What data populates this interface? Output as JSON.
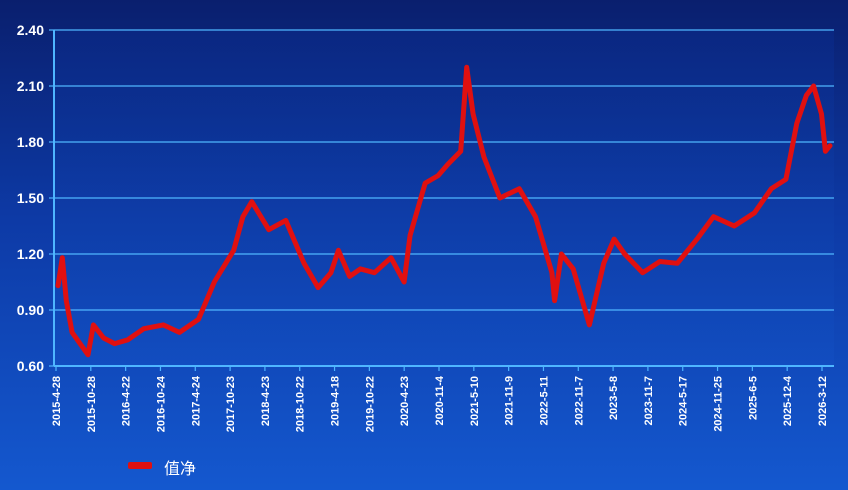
{
  "chart_data": {
    "type": "line",
    "title": "",
    "xlabel": "",
    "ylabel": "",
    "ylim": [
      0.6,
      2.4
    ],
    "y_ticks": [
      "0.60",
      "0.90",
      "1.20",
      "1.50",
      "1.80",
      "2.10",
      "2.40"
    ],
    "grid": "horizontal",
    "legend_position": "bottom-left",
    "x_tick_labels": [
      "2015-4-28",
      "2015-10-28",
      "2016-4-22",
      "2016-10-24",
      "2017-4-24",
      "2017-10-23",
      "2018-4-23",
      "2018-10-22",
      "2019-4-18",
      "2019-10-22",
      "2020-4-23",
      "2020-11-4",
      "2021-5-10",
      "2021-11-9",
      "2022-5-11",
      "2022-11-7",
      "2023-5-8",
      "2023-11-7",
      "2024-5-17",
      "2024-11-25",
      "2025-6-5",
      "2025-12-4",
      "2026-3-12"
    ],
    "series": [
      {
        "name": "值净",
        "color": "#e01010",
        "x": [
          "2015-04-28",
          "2015-05-20",
          "2015-06-10",
          "2015-07-10",
          "2015-08-20",
          "2015-09-30",
          "2015-10-28",
          "2015-12-20",
          "2016-02-15",
          "2016-04-22",
          "2016-07-15",
          "2016-10-24",
          "2017-01-15",
          "2017-04-24",
          "2017-07-15",
          "2017-10-23",
          "2017-12-10",
          "2018-01-25",
          "2018-04-23",
          "2018-07-20",
          "2018-10-22",
          "2019-01-03",
          "2019-03-10",
          "2019-04-18",
          "2019-06-15",
          "2019-08-10",
          "2019-10-22",
          "2020-01-15",
          "2020-03-23",
          "2020-04-23",
          "2020-07-10",
          "2020-09-15",
          "2020-11-04",
          "2021-01-10",
          "2021-02-10",
          "2021-03-15",
          "2021-05-10",
          "2021-08-01",
          "2021-11-09",
          "2022-02-01",
          "2022-04-27",
          "2022-05-11",
          "2022-06-15",
          "2022-08-15",
          "2022-11-07",
          "2023-01-20",
          "2023-03-15",
          "2023-05-08",
          "2023-08-10",
          "2023-11-07",
          "2024-02-05",
          "2024-05-17",
          "2024-08-10",
          "2024-11-25",
          "2025-03-10",
          "2025-06-05",
          "2025-08-20",
          "2025-10-15",
          "2025-12-04",
          "2026-01-10",
          "2026-02-20",
          "2026-03-12",
          "2026-04-05"
        ],
        "values": [
          1.03,
          1.18,
          0.95,
          0.78,
          0.72,
          0.66,
          0.82,
          0.75,
          0.72,
          0.74,
          0.8,
          0.82,
          0.78,
          0.85,
          1.05,
          1.22,
          1.4,
          1.48,
          1.33,
          1.38,
          1.15,
          1.02,
          1.1,
          1.22,
          1.08,
          1.12,
          1.1,
          1.18,
          1.05,
          1.3,
          1.58,
          1.62,
          1.68,
          1.75,
          2.2,
          1.95,
          1.72,
          1.5,
          1.55,
          1.4,
          1.1,
          0.95,
          1.2,
          1.12,
          0.82,
          1.15,
          1.28,
          1.2,
          1.1,
          1.16,
          1.15,
          1.28,
          1.4,
          1.35,
          1.42,
          1.55,
          1.6,
          1.9,
          2.05,
          2.1,
          1.95,
          1.75,
          1.78
        ]
      }
    ]
  }
}
